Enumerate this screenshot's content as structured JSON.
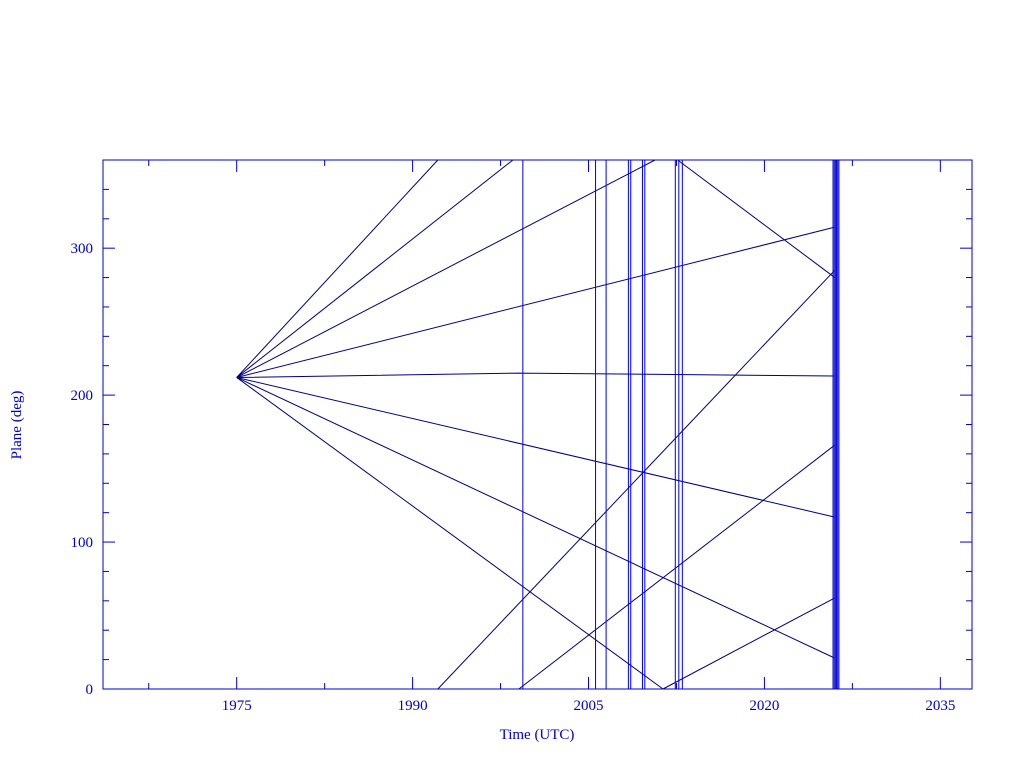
{
  "chart_data": {
    "type": "line",
    "xlabel": "Time (UTC)",
    "ylabel": "Plane (deg)",
    "xlim": [
      1963.6,
      2037.7
    ],
    "ylim": [
      0,
      360
    ],
    "xticks": [
      1975,
      1990,
      2005,
      2020,
      2035
    ],
    "xminorticks": [
      1967.5,
      1982.5,
      1997.5,
      2012.5,
      2027.5
    ],
    "yticks": [
      0,
      100,
      200,
      300
    ],
    "yminorticks": [
      20,
      40,
      60,
      80,
      120,
      140,
      160,
      180,
      220,
      240,
      260,
      280,
      320,
      340
    ],
    "axis_color": "#0000c8",
    "line_color": "#000080",
    "vline_color": "#0000e0",
    "series": [
      {
        "x": [
          1975,
          1992.15
        ],
        "values": [
          212,
          360
        ]
      },
      {
        "x": [
          1975,
          1998.55
        ],
        "values": [
          212,
          360
        ]
      },
      {
        "x": [
          1975,
          2010.67
        ],
        "values": [
          212,
          360
        ]
      },
      {
        "x": [
          1975,
          2026.0
        ],
        "values": [
          212,
          314.3
        ]
      },
      {
        "x": [
          1975,
          1999.0,
          2026.0
        ],
        "values": [
          212,
          215,
          213
        ]
      },
      {
        "x": [
          1975,
          2026.0
        ],
        "values": [
          212,
          117
        ]
      },
      {
        "x": [
          1975,
          2026.0
        ],
        "values": [
          212,
          21
        ]
      },
      {
        "x": [
          1975,
          2011.35
        ],
        "values": [
          212,
          0
        ]
      },
      {
        "x": [
          1992.15,
          2026.0
        ],
        "values": [
          0,
          285
        ]
      },
      {
        "x": [
          1999.06,
          2026.0
        ],
        "values": [
          0,
          166
        ]
      },
      {
        "x": [
          2011.35,
          2026.0
        ],
        "values": [
          0,
          62
        ]
      },
      {
        "x": [
          2012.6,
          2026.0
        ],
        "values": [
          360,
          280
        ]
      }
    ],
    "vlines": [
      1999.4,
      2005.6,
      2006.5,
      2008.4,
      2008.6,
      2009.6,
      2009.8,
      2012.4,
      2012.7,
      2013.0,
      2025.85,
      2025.95,
      2026.05,
      2026.15,
      2026.25,
      2026.35
    ]
  }
}
